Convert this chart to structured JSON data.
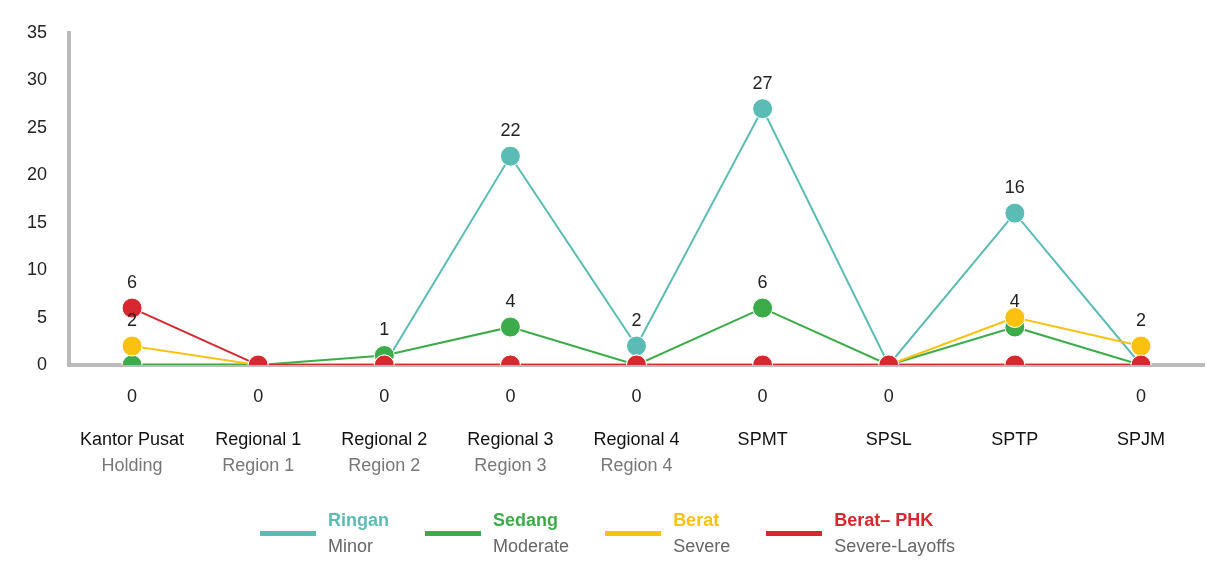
{
  "chart_data": {
    "type": "line",
    "categories": [
      "Kantor Pusat\nHolding",
      "Regional 1\nRegion 1",
      "Regional 2\nRegion 2",
      "Regional 3\nRegion 3",
      "Regional 4\nRegion 4",
      "SPMT",
      "SPSL",
      "SPTP",
      "SPJM"
    ],
    "series": [
      {
        "name": "Ringan\nMinor",
        "color": "#5bbcb5",
        "values": [
          0,
          0,
          0,
          22,
          2,
          27,
          0,
          16,
          0
        ],
        "value_labels": [
          null,
          "0",
          "0",
          "22",
          "2",
          "27",
          "0",
          "16",
          "0"
        ]
      },
      {
        "name": "Sedang\nModerate",
        "color": "#3cac4a",
        "values": [
          0,
          0,
          1,
          4,
          0,
          6,
          0,
          4,
          0
        ],
        "value_labels": [
          "0",
          null,
          "1",
          "4",
          "0",
          "6",
          null,
          "4",
          null
        ]
      },
      {
        "name": "Berat\nSevere",
        "color": "#fbc111",
        "values": [
          2,
          0,
          0,
          0,
          0,
          0,
          0,
          5,
          2
        ],
        "value_labels": [
          "2",
          null,
          null,
          "0",
          null,
          "0",
          null,
          null,
          "2"
        ]
      },
      {
        "name": "Berat– PHK\nSevere-Layoffs",
        "color": "#d7282f",
        "values": [
          6,
          0,
          0,
          0,
          0,
          0,
          0,
          0,
          0
        ],
        "value_labels": [
          "6",
          null,
          null,
          null,
          null,
          null,
          null,
          null,
          null
        ]
      }
    ],
    "ylim": [
      0,
      35
    ],
    "yticks": [
      0,
      5,
      10,
      15,
      20,
      25,
      30,
      35
    ],
    "grid": false,
    "legend": "bottom",
    "marker": "circle",
    "line_style": "solid"
  }
}
